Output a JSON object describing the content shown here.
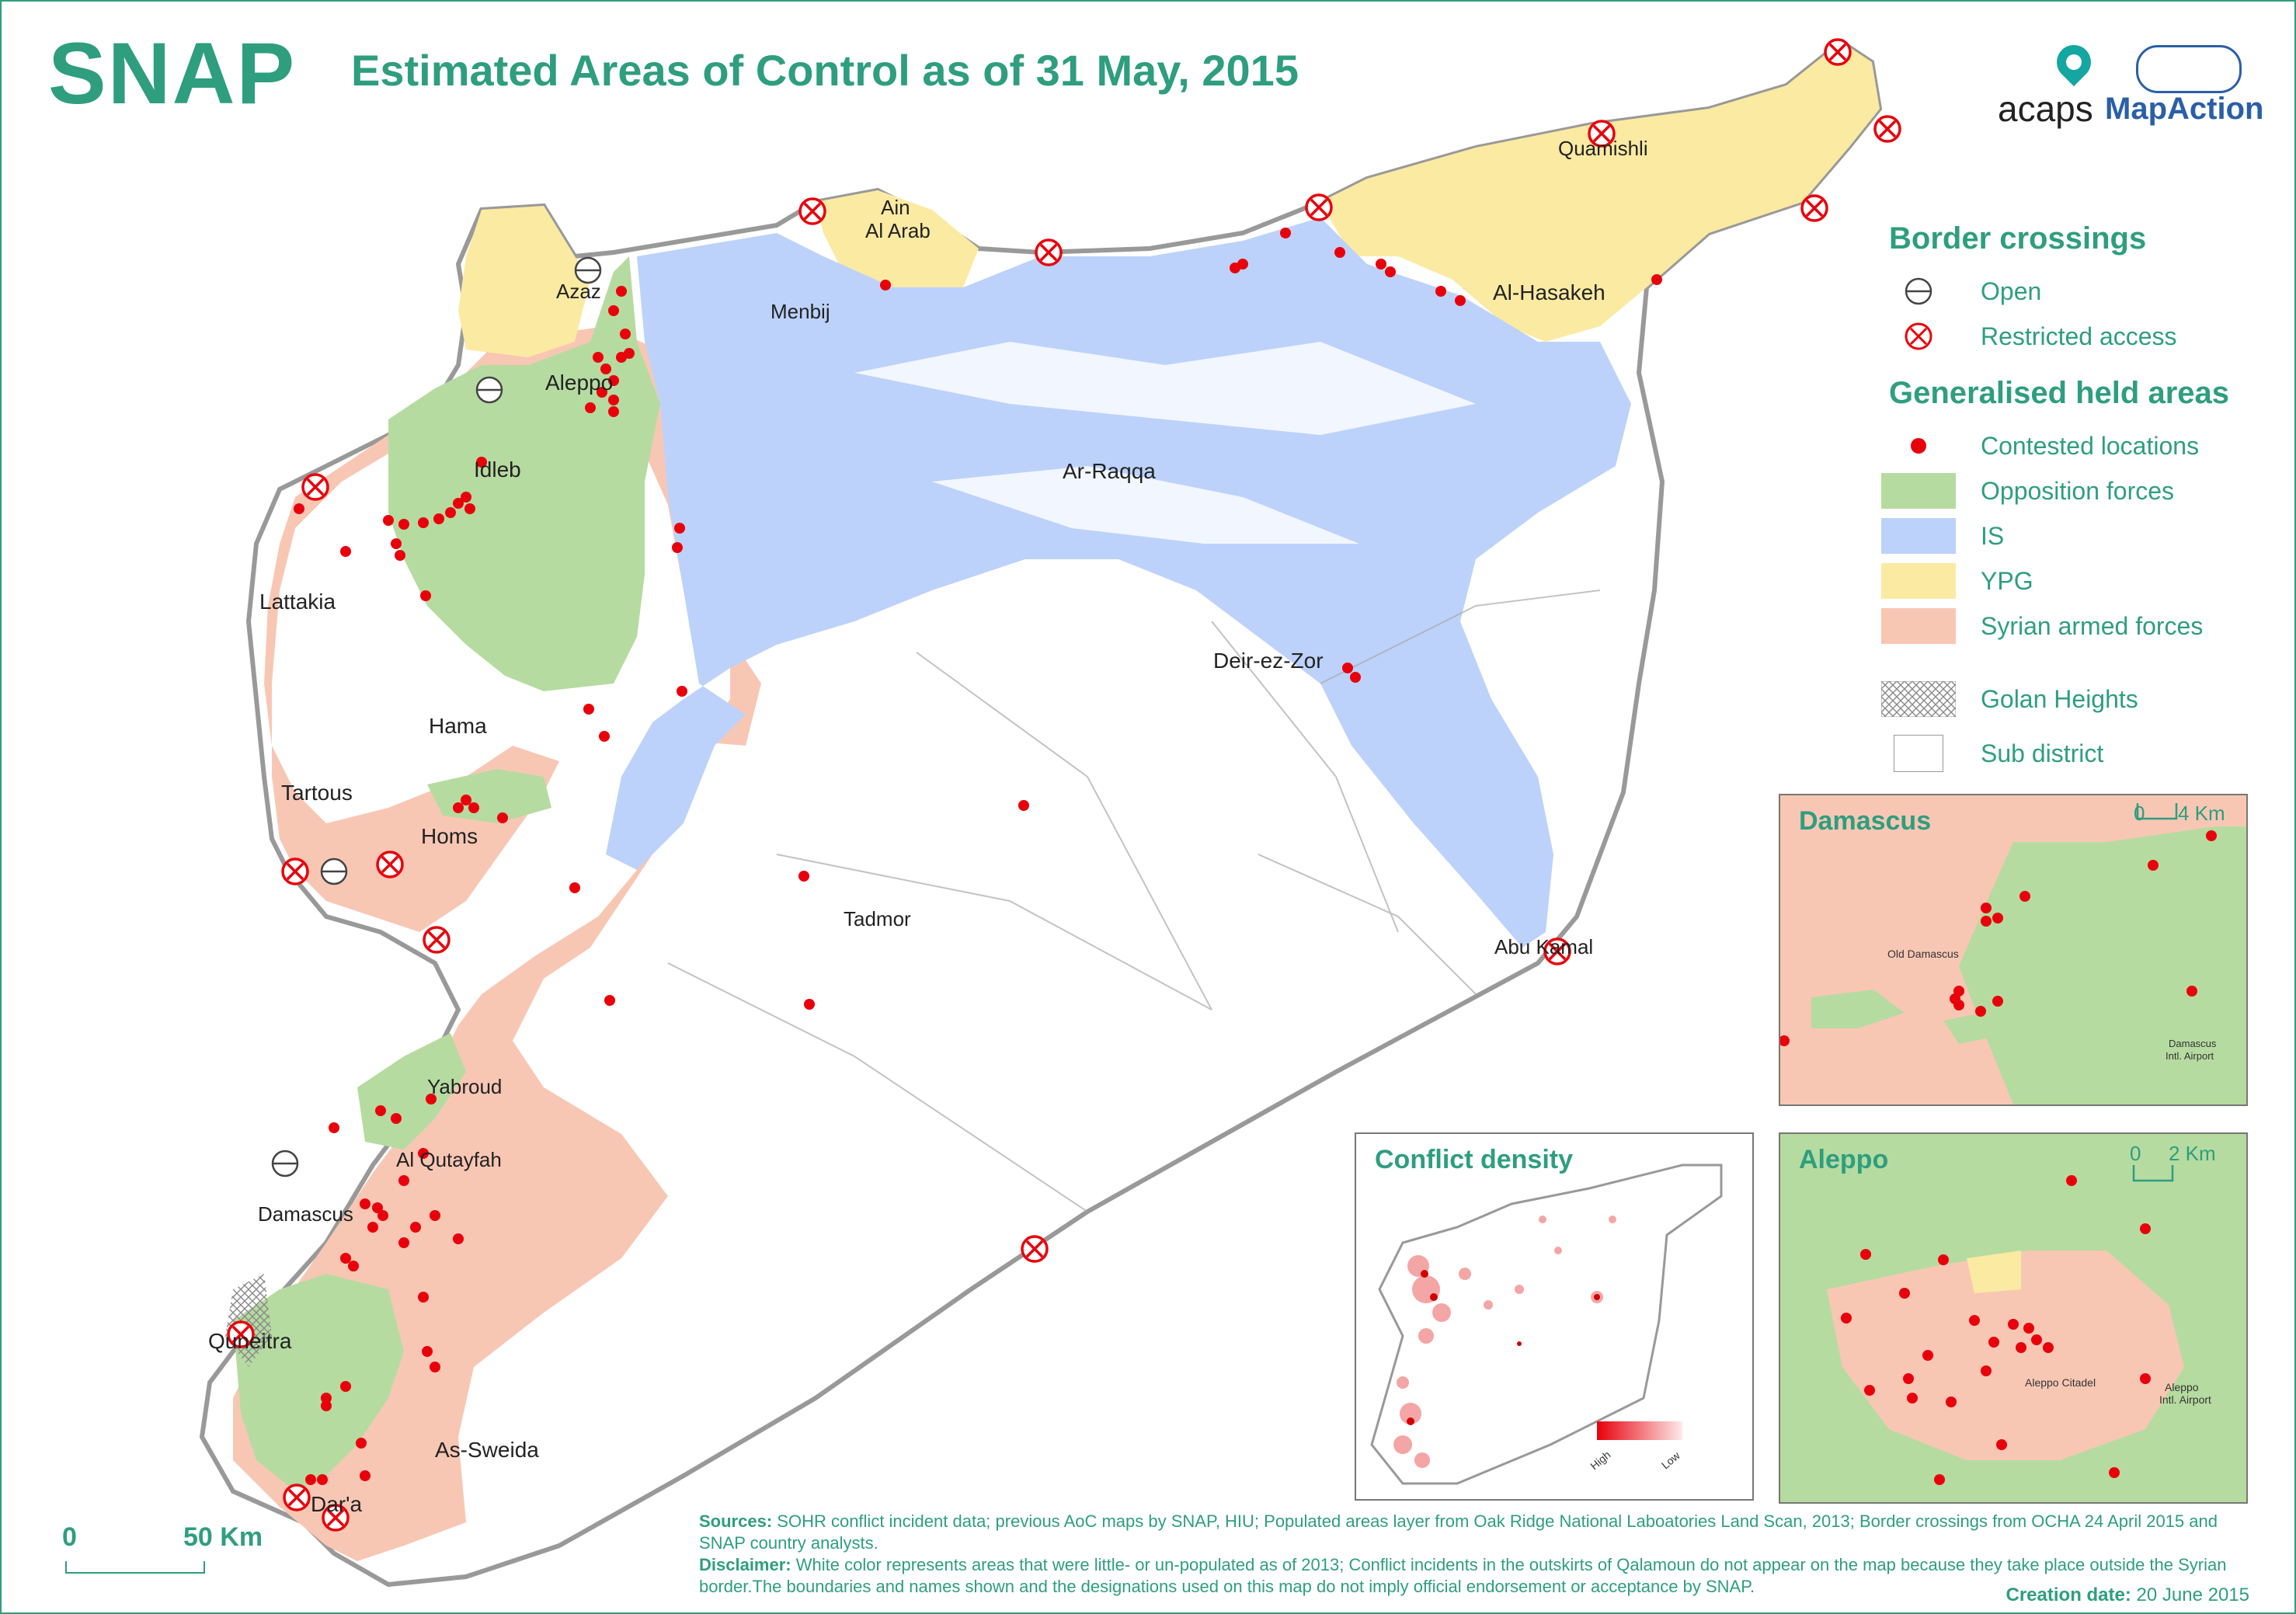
{
  "header": {
    "brand": "SNAP",
    "title": "Estimated Areas of Control as of 31 May, 2015",
    "logo_acaps": "acaps",
    "logo_mapaction": "MapAction"
  },
  "legend": {
    "border_title": "Border crossings",
    "open": "Open",
    "restricted": "Restricted access",
    "held_title": "Generalised held areas",
    "contested": "Contested locations",
    "opposition": "Opposition forces",
    "is": "IS",
    "ypg": "YPG",
    "saf": "Syrian armed forces",
    "golan": "Golan Heights",
    "subdistrict": "Sub district"
  },
  "colors": {
    "accent": "#2e9e7f",
    "opposition": "#b6dba0",
    "is": "#bcd2fb",
    "ypg": "#fbeaa2",
    "saf": "#f8c7b4",
    "contested": "#e8000b",
    "border": "#999999"
  },
  "cities": {
    "azaz": "Azaz",
    "aleppo": "Aleppo",
    "idleb": "Idleb",
    "lattakia": "Lattakia",
    "hama": "Hama",
    "tartous": "Tartous",
    "homs": "Homs",
    "tadmor": "Tadmor",
    "yabroud": "Yabroud",
    "alqutayfah": "Al Qutayfah",
    "damascus": "Damascus",
    "quneitra": "Quneitra",
    "assweida": "As-Sweida",
    "dara": "Dar'a",
    "menbij": "Menbij",
    "ain": "Ain",
    "alarab": "Al Arab",
    "qamishli": "Quamishli",
    "hasakeh": "Al-Hasakeh",
    "raqqa": "Ar-Raqqa",
    "deir": "Deir-ez-Zor",
    "abukamal": "Abu Kamal"
  },
  "insets": {
    "damascus": {
      "title": "Damascus",
      "scale_0": "0",
      "scale_end": "4 Km",
      "label_old": "Old Damascus",
      "label_airport_1": "Damascus",
      "label_airport_2": "Intl. Airport"
    },
    "aleppo": {
      "title": "Aleppo",
      "scale_0": "0",
      "scale_end": "2 Km",
      "label_citadel": "Aleppo Citadel",
      "label_airport_1": "Aleppo",
      "label_airport_2": "Intl. Airport"
    },
    "density": {
      "title": "Conflict density",
      "high": "High",
      "low": "Low"
    }
  },
  "map_scale": {
    "zero": "0",
    "end": "50 Km"
  },
  "footer": {
    "sources_label": "Sources:",
    "sources": "SOHR conflict incident data; previous AoC maps by SNAP, HIU; Populated areas layer from Oak Ridge National Laboatories Land Scan, 2013; Border crossings from OCHA 24 April 2015 and SNAP country analysts.",
    "disclaimer_label": "Disclaimer:",
    "disclaimer": "White color represents areas that were little- or un-populated as of 2013; Conflict incidents in the outskirts of Qalamoun do not appear on the map because they take place outside the Syrian border.The boundaries and names shown and the designations used on this map do not imply official endorsement or acceptance by SNAP.",
    "creation_label": "Creation date:",
    "creation": "20 June 2015"
  }
}
